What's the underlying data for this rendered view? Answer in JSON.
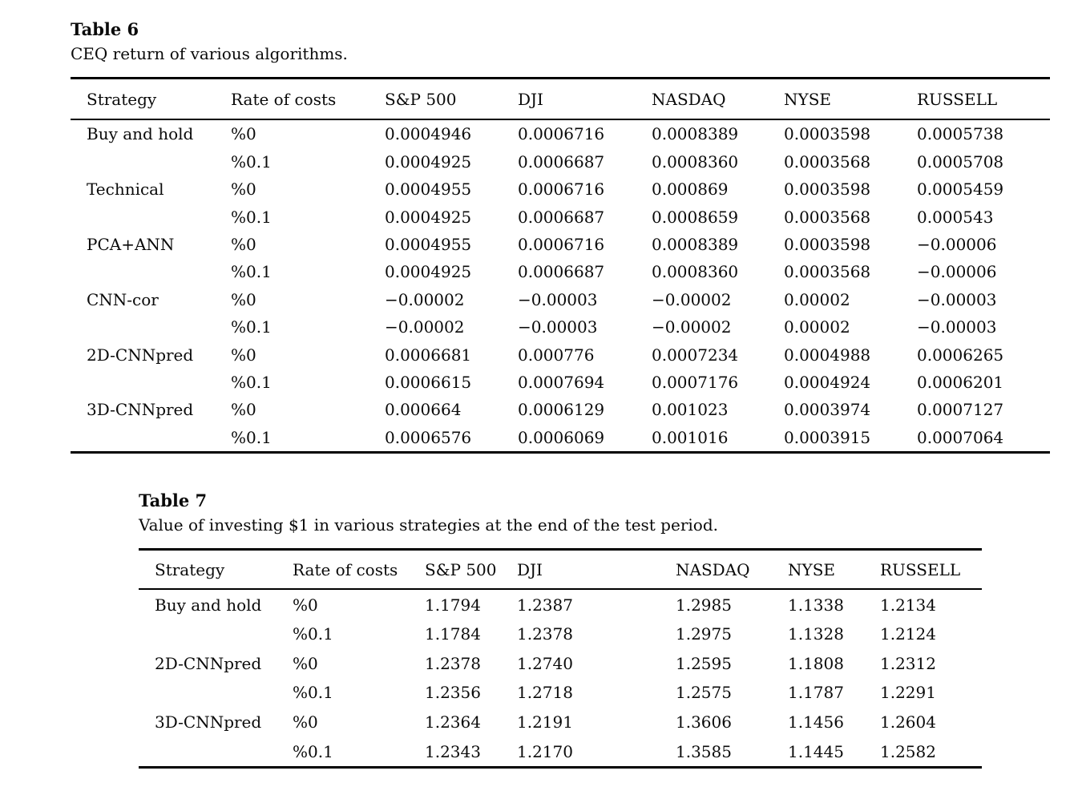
{
  "tables": [
    {
      "title": "Table 6",
      "caption": "CEQ return of various algorithms.",
      "columns": [
        "Strategy",
        "Rate of costs",
        "S&P 500",
        "DJI",
        "NASDAQ",
        "NYSE",
        "RUSSELL"
      ],
      "rows": [
        [
          "Buy and hold",
          "%0",
          "0.0004946",
          "0.0006716",
          "0.0008389",
          "0.0003598",
          "0.0005738"
        ],
        [
          "",
          "%0.1",
          "0.0004925",
          "0.0006687",
          "0.0008360",
          "0.0003568",
          "0.0005708"
        ],
        [
          "Technical",
          "%0",
          "0.0004955",
          "0.0006716",
          "0.000869",
          "0.0003598",
          "0.0005459"
        ],
        [
          "",
          "%0.1",
          "0.0004925",
          "0.0006687",
          "0.0008659",
          "0.0003568",
          "0.000543"
        ],
        [
          "PCA+ANN",
          "%0",
          "0.0004955",
          "0.0006716",
          "0.0008389",
          "0.0003598",
          "−0.00006"
        ],
        [
          "",
          "%0.1",
          "0.0004925",
          "0.0006687",
          "0.0008360",
          "0.0003568",
          "−0.00006"
        ],
        [
          "CNN-cor",
          "%0",
          "−0.00002",
          "−0.00003",
          "−0.00002",
          "0.00002",
          "−0.00003"
        ],
        [
          "",
          "%0.1",
          "−0.00002",
          "−0.00003",
          "−0.00002",
          "0.00002",
          "−0.00003"
        ],
        [
          "2D-CNNpred",
          "%0",
          "0.0006681",
          "0.000776",
          "0.0007234",
          "0.0004988",
          "0.0006265"
        ],
        [
          "",
          "%0.1",
          "0.0006615",
          "0.0007694",
          "0.0007176",
          "0.0004924",
          "0.0006201"
        ],
        [
          "3D-CNNpred",
          "%0",
          "0.000664",
          "0.0006129",
          "0.001023",
          "0.0003974",
          "0.0007127"
        ],
        [
          "",
          "%0.1",
          "0.0006576",
          "0.0006069",
          "0.001016",
          "0.0003915",
          "0.0007064"
        ]
      ]
    },
    {
      "title": "Table 7",
      "caption": "Value of investing $1 in various strategies at the end of the test period.",
      "columns": [
        "Strategy",
        "Rate of costs",
        "S&P 500",
        "DJI",
        "NASDAQ",
        "NYSE",
        "RUSSELL"
      ],
      "rows": [
        [
          "Buy and hold",
          "%0",
          "1.1794",
          "1.2387",
          "1.2985",
          "1.1338",
          "1.2134"
        ],
        [
          "",
          "%0.1",
          "1.1784",
          "1.2378",
          "1.2975",
          "1.1328",
          "1.2124"
        ],
        [
          "2D-CNNpred",
          "%0",
          "1.2378",
          "1.2740",
          "1.2595",
          "1.1808",
          "1.2312"
        ],
        [
          "",
          "%0.1",
          "1.2356",
          "1.2718",
          "1.2575",
          "1.1787",
          "1.2291"
        ],
        [
          "3D-CNNpred",
          "%0",
          "1.2364",
          "1.2191",
          "1.3606",
          "1.1456",
          "1.2604"
        ],
        [
          "",
          "%0.1",
          "1.2343",
          "1.2170",
          "1.3585",
          "1.1445",
          "1.2582"
        ]
      ]
    }
  ]
}
